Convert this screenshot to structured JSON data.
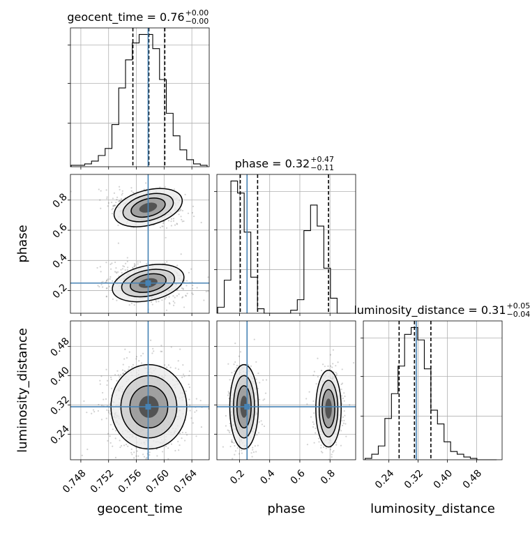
{
  "chart_data": {
    "type": "corner",
    "parameters": [
      "geocent_time",
      "phase",
      "luminosity_distance"
    ],
    "truths": {
      "geocent_time": 0.7577,
      "phase": 0.25,
      "luminosity_distance": 0.315
    },
    "quantile_lines": {
      "geocent_time": [
        0.7555,
        0.7578,
        0.7601
      ],
      "phase": [
        0.205,
        0.32,
        0.79
      ],
      "luminosity_distance": [
        0.268,
        0.31,
        0.355
      ]
    },
    "titles": [
      {
        "param": "geocent_time",
        "text": "geocent_time = 0.76",
        "sup": "+0.00",
        "sub": "−0.00"
      },
      {
        "param": "phase",
        "text": "phase = 0.32",
        "sup": "+0.47",
        "sub": "−0.11"
      },
      {
        "param": "luminosity_distance",
        "text": "luminosity_distance = 0.31",
        "sup": "+0.05",
        "sub": "−0.04"
      }
    ],
    "axes": {
      "geocent_time": {
        "label": "geocent_time",
        "range": [
          0.7465,
          0.7665
        ],
        "ticks": [
          "0.748",
          "0.752",
          "0.756",
          "0.760",
          "0.764"
        ]
      },
      "phase": {
        "label": "phase",
        "range": [
          0.05,
          0.97
        ],
        "ticks": [
          "0.2",
          "0.4",
          "0.6",
          "0.8"
        ]
      },
      "luminosity_distance": {
        "label": "luminosity_distance",
        "range": [
          0.17,
          0.55
        ],
        "ticks": [
          "0.24",
          "0.32",
          "0.40",
          "0.48"
        ]
      }
    },
    "histograms": {
      "geocent_time": {
        "edges_range": [
          0.7466,
          0.7662
        ],
        "counts": [
          1,
          1,
          2,
          4,
          8,
          13,
          30,
          56,
          76,
          88,
          94,
          94,
          84,
          62,
          38,
          22,
          12,
          5,
          2,
          1
        ]
      },
      "phase": {
        "edges_range": [
          0.055,
          0.935
        ],
        "counts": [
          4,
          22,
          88,
          80,
          54,
          24,
          3,
          0,
          0,
          0,
          0,
          2,
          9,
          55,
          72,
          58,
          30,
          10,
          0,
          0
        ]
      },
      "luminosity_distance": {
        "edges_range": [
          0.175,
          0.535
        ],
        "counts": [
          1,
          4,
          10,
          30,
          48,
          68,
          91,
          96,
          87,
          66,
          36,
          26,
          13,
          6,
          4,
          2,
          1,
          0,
          0,
          0
        ]
      }
    },
    "grid": true
  }
}
